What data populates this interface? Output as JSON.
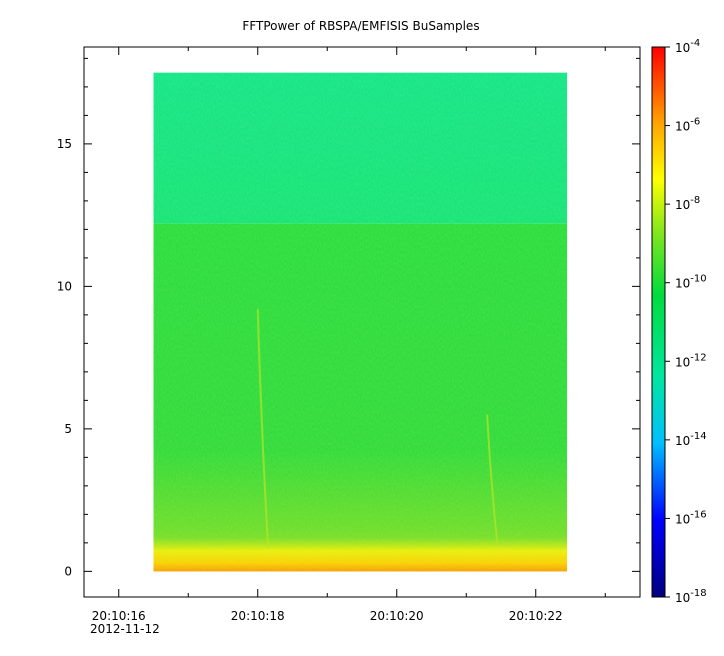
{
  "chart_data": {
    "type": "heatmap",
    "title": "FFTPower of RBSPA/EMFISIS  BuSamples",
    "xlabel": "",
    "ylabel": "",
    "x_ticks": [
      {
        "label": "20:10:16",
        "value": 16
      },
      {
        "label": "20:10:18",
        "value": 18
      },
      {
        "label": "20:10:20",
        "value": 20
      },
      {
        "label": "20:10:22",
        "value": 22
      }
    ],
    "x_date_label": "2012-11-12",
    "xlim_seconds_after_20_10": [
      15.5,
      23.5
    ],
    "y_ticks": [
      0,
      5,
      10,
      15
    ],
    "ylim": [
      -0.9,
      18.4
    ],
    "data_extent": {
      "x": [
        16.5,
        22.45
      ],
      "y": [
        0,
        17.5
      ]
    },
    "colorbar": {
      "scale": "log",
      "range": [
        1e-18,
        0.0001
      ],
      "tick_exponents": [
        -18,
        -16,
        -14,
        -12,
        -10,
        -8,
        -6,
        -4
      ],
      "tick_base": "10",
      "colors": [
        "#00007f",
        "#0000ff",
        "#00bfff",
        "#00e6a0",
        "#00dc3c",
        "#7fe61e",
        "#ffff00",
        "#ffa500",
        "#ff0000"
      ]
    },
    "features": {
      "upper_band_level_exponent": -13,
      "lower_band_level_exponent": -11,
      "band_boundary_y": 12.2,
      "low_freq_level_exponent": -8
    }
  }
}
